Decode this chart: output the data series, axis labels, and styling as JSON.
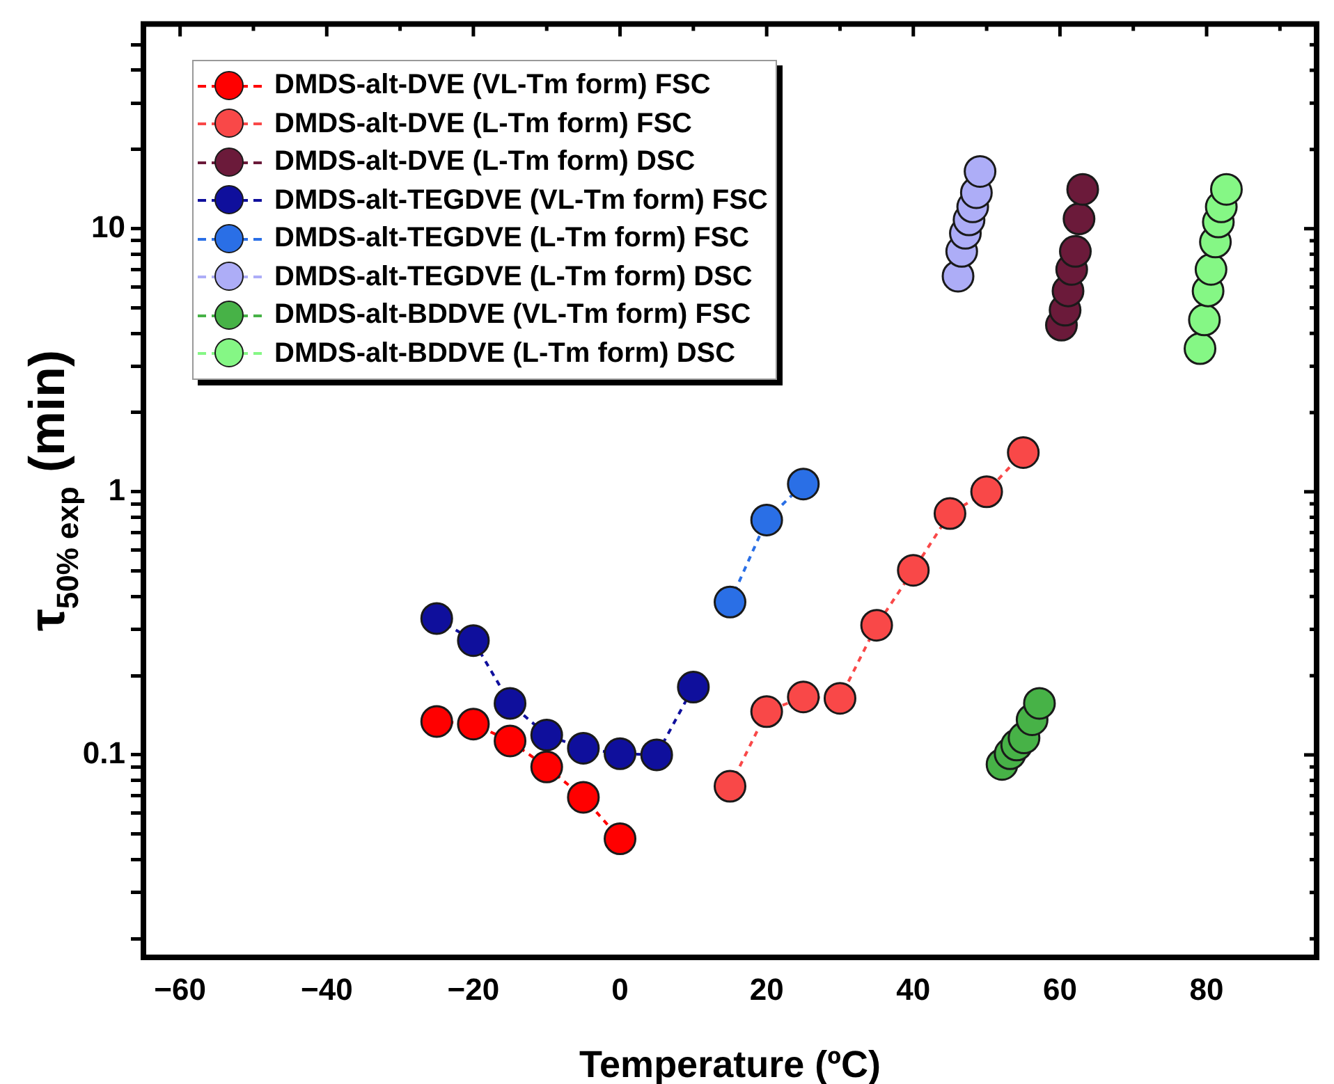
{
  "chart_data": {
    "type": "scatter",
    "xlabel": "Temperature (ºC)",
    "ylabel": "τ$_{50% exp}$ (min)",
    "log": "y",
    "grid": false,
    "legend": "top left",
    "marker": "circle",
    "line_style": "dashed",
    "xlim": [
      -65,
      95
    ],
    "xticks": [
      -60,
      {
        "value": -50,
        "label": null
      },
      -40,
      {
        "value": -30,
        "label": null
      },
      -20,
      {
        "value": -10,
        "label": null
      },
      0,
      {
        "value": 10,
        "label": null
      },
      20,
      {
        "value": 30,
        "label": null
      },
      40,
      {
        "value": 50,
        "label": null
      },
      60,
      {
        "value": 70,
        "label": null
      },
      80,
      {
        "value": 90,
        "label": null
      }
    ],
    "ylim": [
      0.017,
      60
    ],
    "yticks": [
      {
        "value": 0.02,
        "label": null
      },
      {
        "value": 0.03,
        "label": null
      },
      {
        "value": 0.04,
        "label": null
      },
      {
        "value": 0.05,
        "label": null
      },
      {
        "value": 0.06,
        "label": null
      },
      {
        "value": 0.07,
        "label": null
      },
      {
        "value": 0.08,
        "label": null
      },
      {
        "value": 0.09,
        "label": null
      },
      0.1,
      {
        "value": 0.2,
        "label": null
      },
      {
        "value": 0.3,
        "label": null
      },
      {
        "value": 0.4,
        "label": null
      },
      {
        "value": 0.5,
        "label": null
      },
      {
        "value": 0.6,
        "label": null
      },
      {
        "value": 0.7,
        "label": null
      },
      {
        "value": 0.8,
        "label": null
      },
      {
        "value": 0.9,
        "label": null
      },
      1,
      {
        "value": 2,
        "label": null
      },
      {
        "value": 3,
        "label": null
      },
      {
        "value": 4,
        "label": null
      },
      {
        "value": 5,
        "label": null
      },
      {
        "value": 6,
        "label": null
      },
      {
        "value": 7,
        "label": null
      },
      {
        "value": 8,
        "label": null
      },
      {
        "value": 9,
        "label": null
      },
      10,
      {
        "value": 20,
        "label": null
      },
      {
        "value": 30,
        "label": null
      },
      {
        "value": 40,
        "label": null
      },
      {
        "value": 50,
        "label": null
      }
    ],
    "series": [
      {
        "name": "DMDS-alt-DVE (VL-Tm form) FSC",
        "type": "line",
        "color": "#ff0000",
        "x": [
          -25,
          -20,
          -15,
          -10,
          -5,
          0
        ],
        "values": [
          0.134,
          0.131,
          0.113,
          0.09,
          0.069,
          0.048
        ]
      },
      {
        "name": "DMDS-alt-DVE (L-Tm form) FSC",
        "type": "line",
        "color": "#f94848",
        "x": [
          15,
          20,
          25,
          30,
          35,
          40,
          45,
          50,
          55
        ],
        "values": [
          0.076,
          0.146,
          0.166,
          0.164,
          0.311,
          0.503,
          0.827,
          1.0,
          1.41
        ]
      },
      {
        "name": "DMDS-alt-DVE (L-Tm form) DSC",
        "type": "scatter",
        "color": "#6b1a3a",
        "x": [
          60.2,
          60.7,
          61.1,
          61.6,
          62.1,
          62.6,
          63.1
        ],
        "values": [
          4.3,
          4.9,
          5.8,
          7.0,
          8.2,
          10.9,
          14.1
        ]
      },
      {
        "name": "DMDS-alt-TEGDVE (VL-Tm form) FSC",
        "type": "line",
        "color": "#0f0f9c",
        "x": [
          -25,
          -20,
          -15,
          -10,
          -5,
          0,
          5,
          10
        ],
        "values": [
          0.33,
          0.272,
          0.157,
          0.119,
          0.106,
          0.101,
          0.1,
          0.181
        ]
      },
      {
        "name": "DMDS-alt-TEGDVE (L-Tm form) FSC",
        "type": "line",
        "color": "#2a6fe6",
        "x": [
          15,
          20,
          25
        ],
        "values": [
          0.381,
          0.781,
          1.07
        ]
      },
      {
        "name": "DMDS-alt-TEGDVE (L-Tm form) DSC",
        "type": "scatter",
        "color": "#adadf7",
        "x": [
          46.1,
          46.6,
          47.1,
          47.6,
          48.1,
          48.6,
          49.1
        ],
        "values": [
          6.6,
          8.2,
          9.6,
          10.8,
          12.1,
          13.7,
          16.5
        ]
      },
      {
        "name": "DMDS-alt-BDDVE (VL-Tm form) FSC",
        "type": "scatter",
        "color": "#47b247",
        "x": [
          52.1,
          53.2,
          54.1,
          55.1,
          56.2,
          57.2
        ],
        "values": [
          0.092,
          0.101,
          0.109,
          0.116,
          0.136,
          0.157
        ]
      },
      {
        "name": "DMDS-alt-BDDVE (L-Tm form) DSC",
        "type": "scatter",
        "color": "#85f785",
        "x": [
          79.1,
          79.7,
          80.2,
          80.6,
          81.2,
          81.6,
          82.0,
          82.7
        ],
        "values": [
          3.5,
          4.5,
          5.8,
          7.0,
          8.9,
          10.6,
          12.1,
          14.1
        ]
      }
    ]
  }
}
